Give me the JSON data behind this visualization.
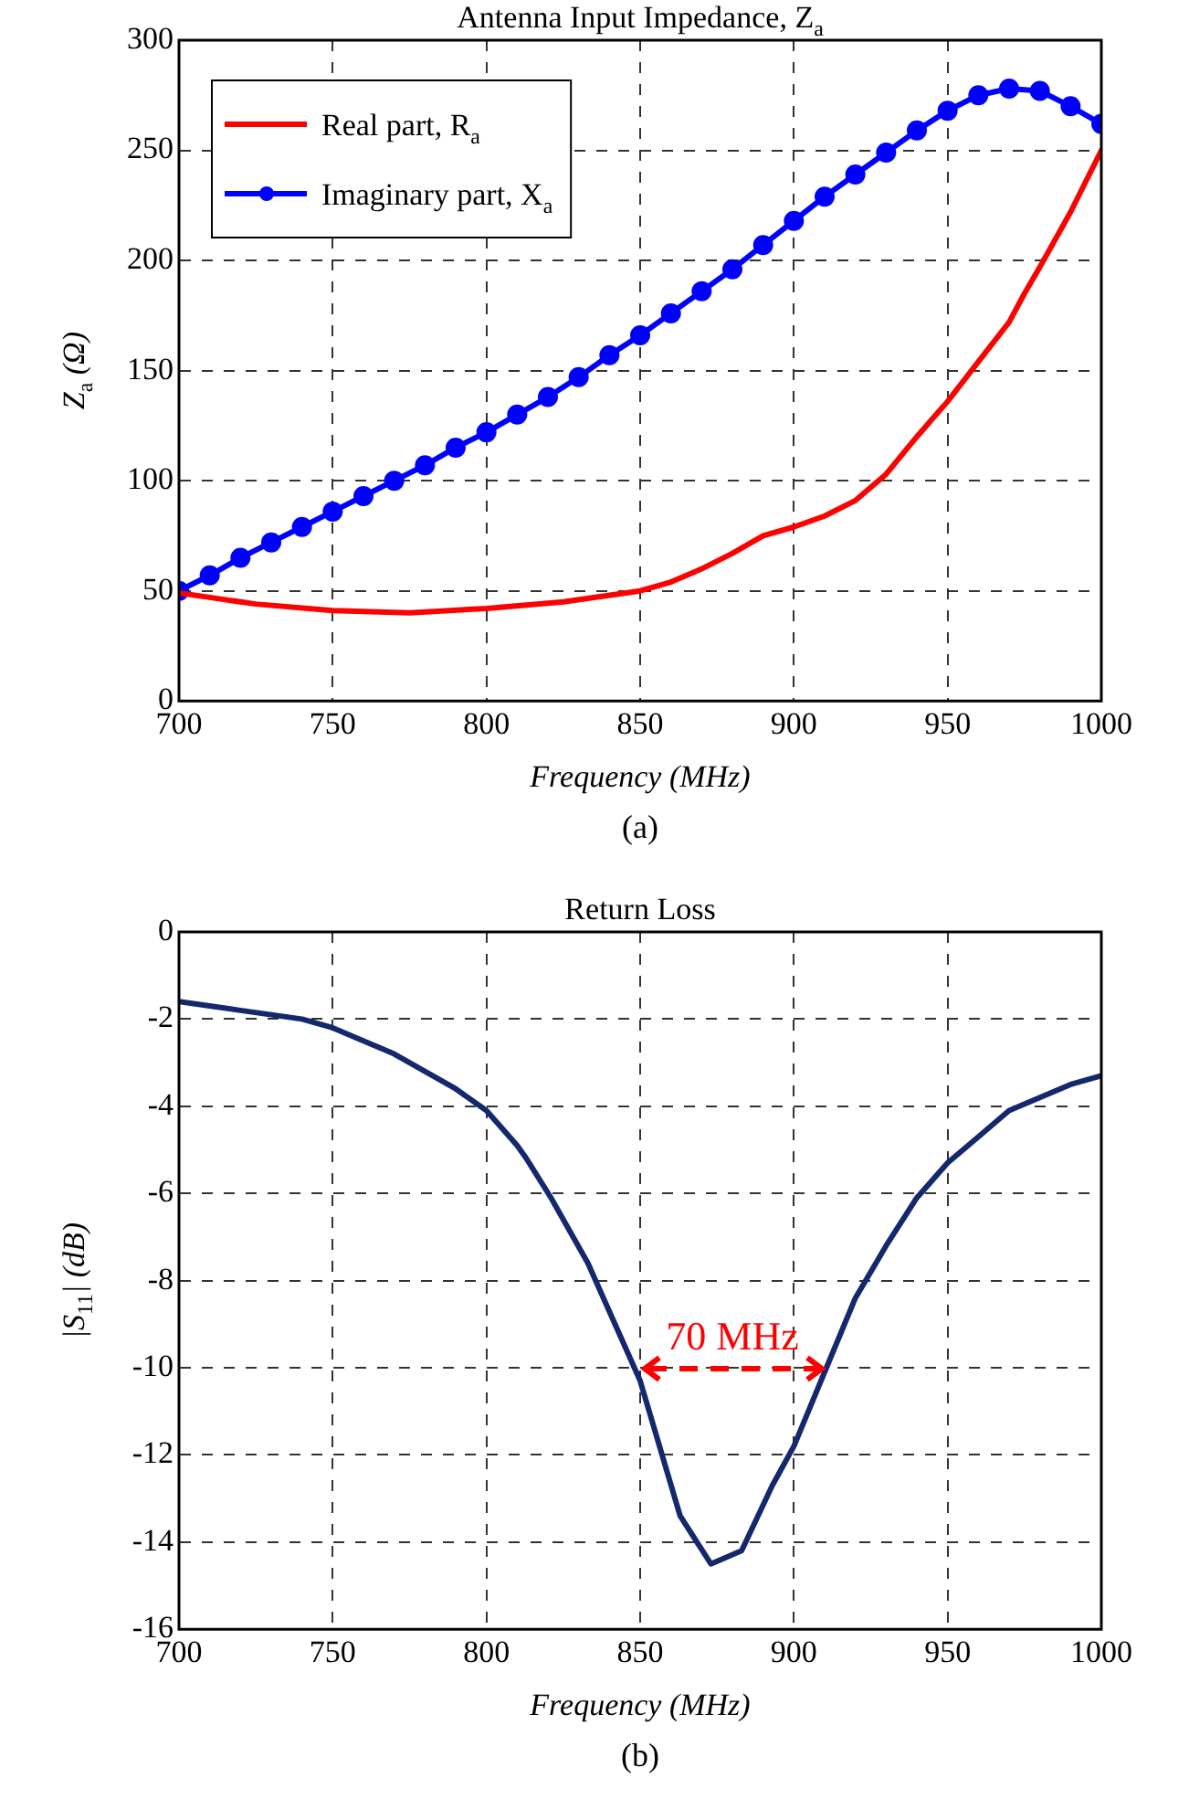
{
  "chart_data": [
    {
      "type": "line",
      "title": "Antenna Input Impedance, Z$_{a}$",
      "xlabel": "Frequency (MHz)",
      "ylabel": "Z$_{a}$ (Ω)",
      "x": [
        700,
        710,
        720,
        730,
        740,
        750,
        760,
        770,
        780,
        790,
        800,
        810,
        820,
        830,
        840,
        850,
        860,
        870,
        880,
        890,
        900,
        910,
        920,
        930,
        940,
        950,
        960,
        970,
        980,
        990,
        1000
      ],
      "series": [
        {
          "name": "Real part, R$_{a}$",
          "color": "#ff0000",
          "marker": "none",
          "x": [
            700,
            710,
            725,
            750,
            775,
            800,
            825,
            850,
            860,
            870,
            880,
            890,
            900,
            910,
            920,
            930,
            940,
            950,
            960,
            970,
            975,
            980,
            990,
            1000
          ],
          "values": [
            49,
            47,
            44,
            41,
            40,
            42,
            45,
            50,
            54,
            60,
            67,
            75,
            79,
            84,
            91,
            103,
            120,
            136,
            154,
            172,
            185,
            197,
            222,
            250
          ]
        },
        {
          "name": "Imaginary part, X$_{a}$",
          "color": "#0000ff",
          "marker": "circle",
          "values": [
            50,
            57,
            65,
            72,
            79,
            86,
            93,
            100,
            107,
            115,
            122,
            130,
            138,
            147,
            157,
            166,
            176,
            186,
            196,
            207,
            218,
            229,
            239,
            249,
            259,
            268,
            275,
            278,
            277,
            270,
            262
          ]
        }
      ],
      "xlim": [
        700,
        1000
      ],
      "xticks": [
        700,
        750,
        800,
        850,
        900,
        950,
        1000
      ],
      "ylim": [
        0,
        300
      ],
      "yticks": [
        0,
        50,
        100,
        150,
        200,
        250,
        300
      ],
      "grid": true,
      "legend": "top left",
      "annotations": [
        "(a)"
      ]
    },
    {
      "type": "line",
      "title": "Return Loss",
      "xlabel": "Frequency (MHz)",
      "ylabel": "|S$_{11}$| (dB)",
      "x": [
        700,
        710,
        720,
        730,
        740,
        750,
        760,
        770,
        780,
        790,
        800,
        810,
        813,
        821,
        833,
        850,
        863,
        873,
        883,
        893,
        900,
        910,
        920,
        930,
        940,
        950,
        960,
        970,
        980,
        990,
        1000
      ],
      "series": [
        {
          "color": "#14286e",
          "marker": "none",
          "values": [
            -1.6,
            -1.7,
            -1.8,
            -1.9,
            -2.0,
            -2.2,
            -2.5,
            -2.8,
            -3.2,
            -3.6,
            -4.1,
            -4.9,
            -5.2,
            -6.1,
            -7.6,
            -10.3,
            -13.4,
            -14.5,
            -14.2,
            -12.7,
            -11.8,
            -10.1,
            -8.4,
            -7.2,
            -6.1,
            -5.3,
            -4.7,
            -4.1,
            -3.8,
            -3.5,
            -3.3
          ]
        }
      ],
      "xlim": [
        700,
        1000
      ],
      "xticks": [
        700,
        750,
        800,
        850,
        900,
        950,
        1000
      ],
      "ylim": [
        -16,
        0
      ],
      "yticks": [
        -16,
        -14,
        -12,
        -10,
        -8,
        -6,
        -4,
        -2,
        0
      ],
      "grid": true,
      "annotations": [
        "70 MHz",
        "(b)"
      ]
    }
  ]
}
